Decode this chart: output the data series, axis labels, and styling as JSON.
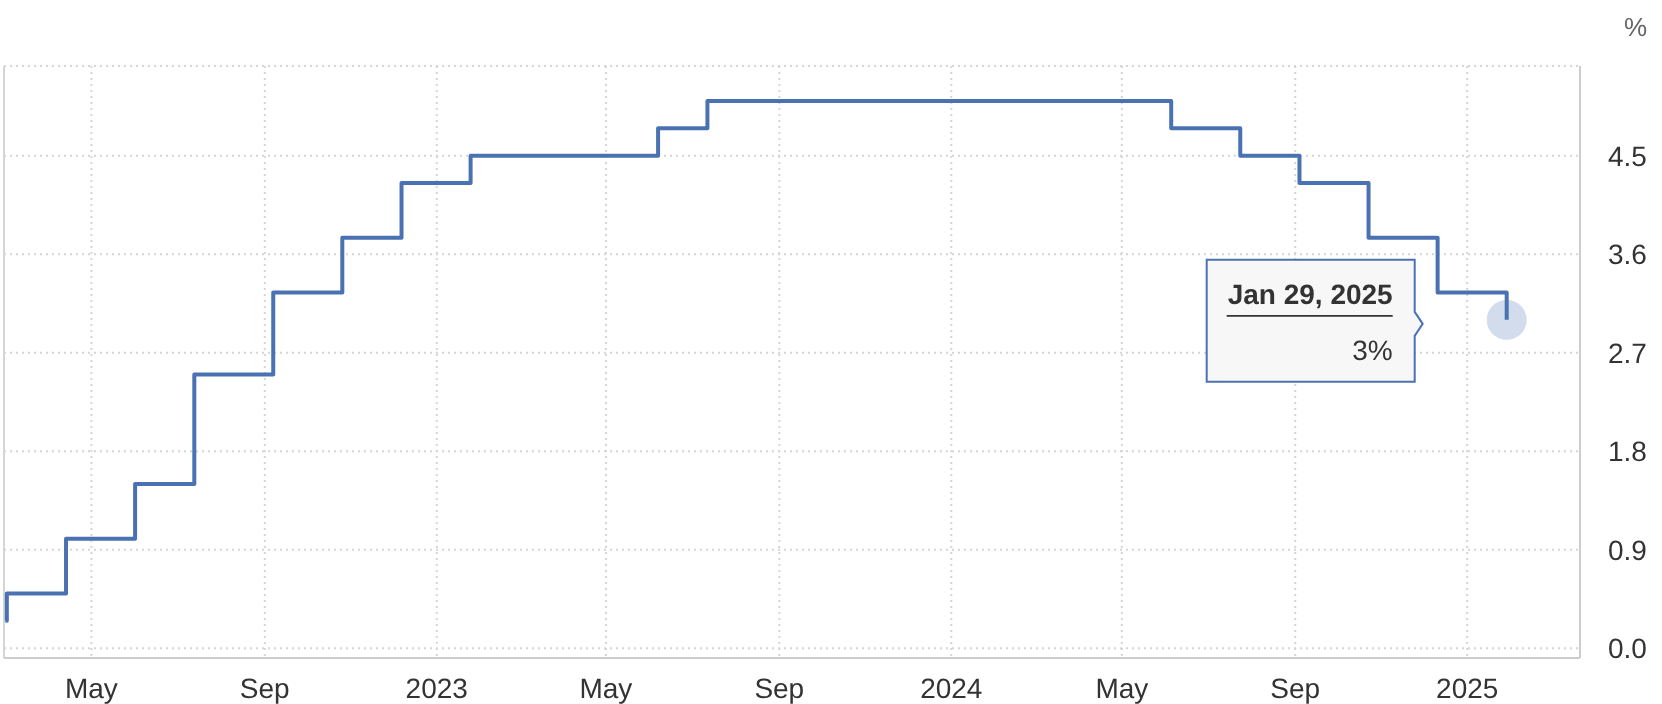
{
  "chart_data": {
    "type": "step",
    "ylabel": "%",
    "x": [
      "2022-03-01",
      "2022-03-02",
      "2022-04-13",
      "2022-06-01",
      "2022-07-13",
      "2022-09-07",
      "2022-10-26",
      "2022-12-07",
      "2023-01-25",
      "2023-06-07",
      "2023-07-12",
      "2024-06-05",
      "2024-07-24",
      "2024-09-04",
      "2024-10-23",
      "2024-12-11",
      "2025-01-29"
    ],
    "series": [
      {
        "color": "#4a72b2",
        "values": [
          0.25,
          0.5,
          1.0,
          1.5,
          2.5,
          3.25,
          3.75,
          4.25,
          4.5,
          4.75,
          5.0,
          4.75,
          4.5,
          4.25,
          3.75,
          3.25,
          3.0
        ]
      }
    ],
    "xlim": [
      "2022-02-28",
      "2025-03-22"
    ],
    "xticks": [
      {
        "value": "2022-05-01",
        "label": "May"
      },
      {
        "value": "2022-09-01",
        "label": "Sep"
      },
      {
        "value": "2023-01-01",
        "label": "2023"
      },
      {
        "value": "2023-05-01",
        "label": "May"
      },
      {
        "value": "2023-09-01",
        "label": "Sep"
      },
      {
        "value": "2024-01-01",
        "label": "2024"
      },
      {
        "value": "2024-05-01",
        "label": "May"
      },
      {
        "value": "2024-09-01",
        "label": "Sep"
      },
      {
        "value": "2025-01-01",
        "label": "2025"
      }
    ],
    "ylim": [
      -0.09,
      5.32
    ],
    "yticks": [
      {
        "value": 0,
        "label": "0.0"
      },
      0.9,
      1.8,
      2.7,
      3.6,
      4.5
    ],
    "grid": true,
    "marker": "none",
    "line_style": "solid",
    "annotations": [
      "Jan 29, 2025",
      "3%"
    ]
  }
}
